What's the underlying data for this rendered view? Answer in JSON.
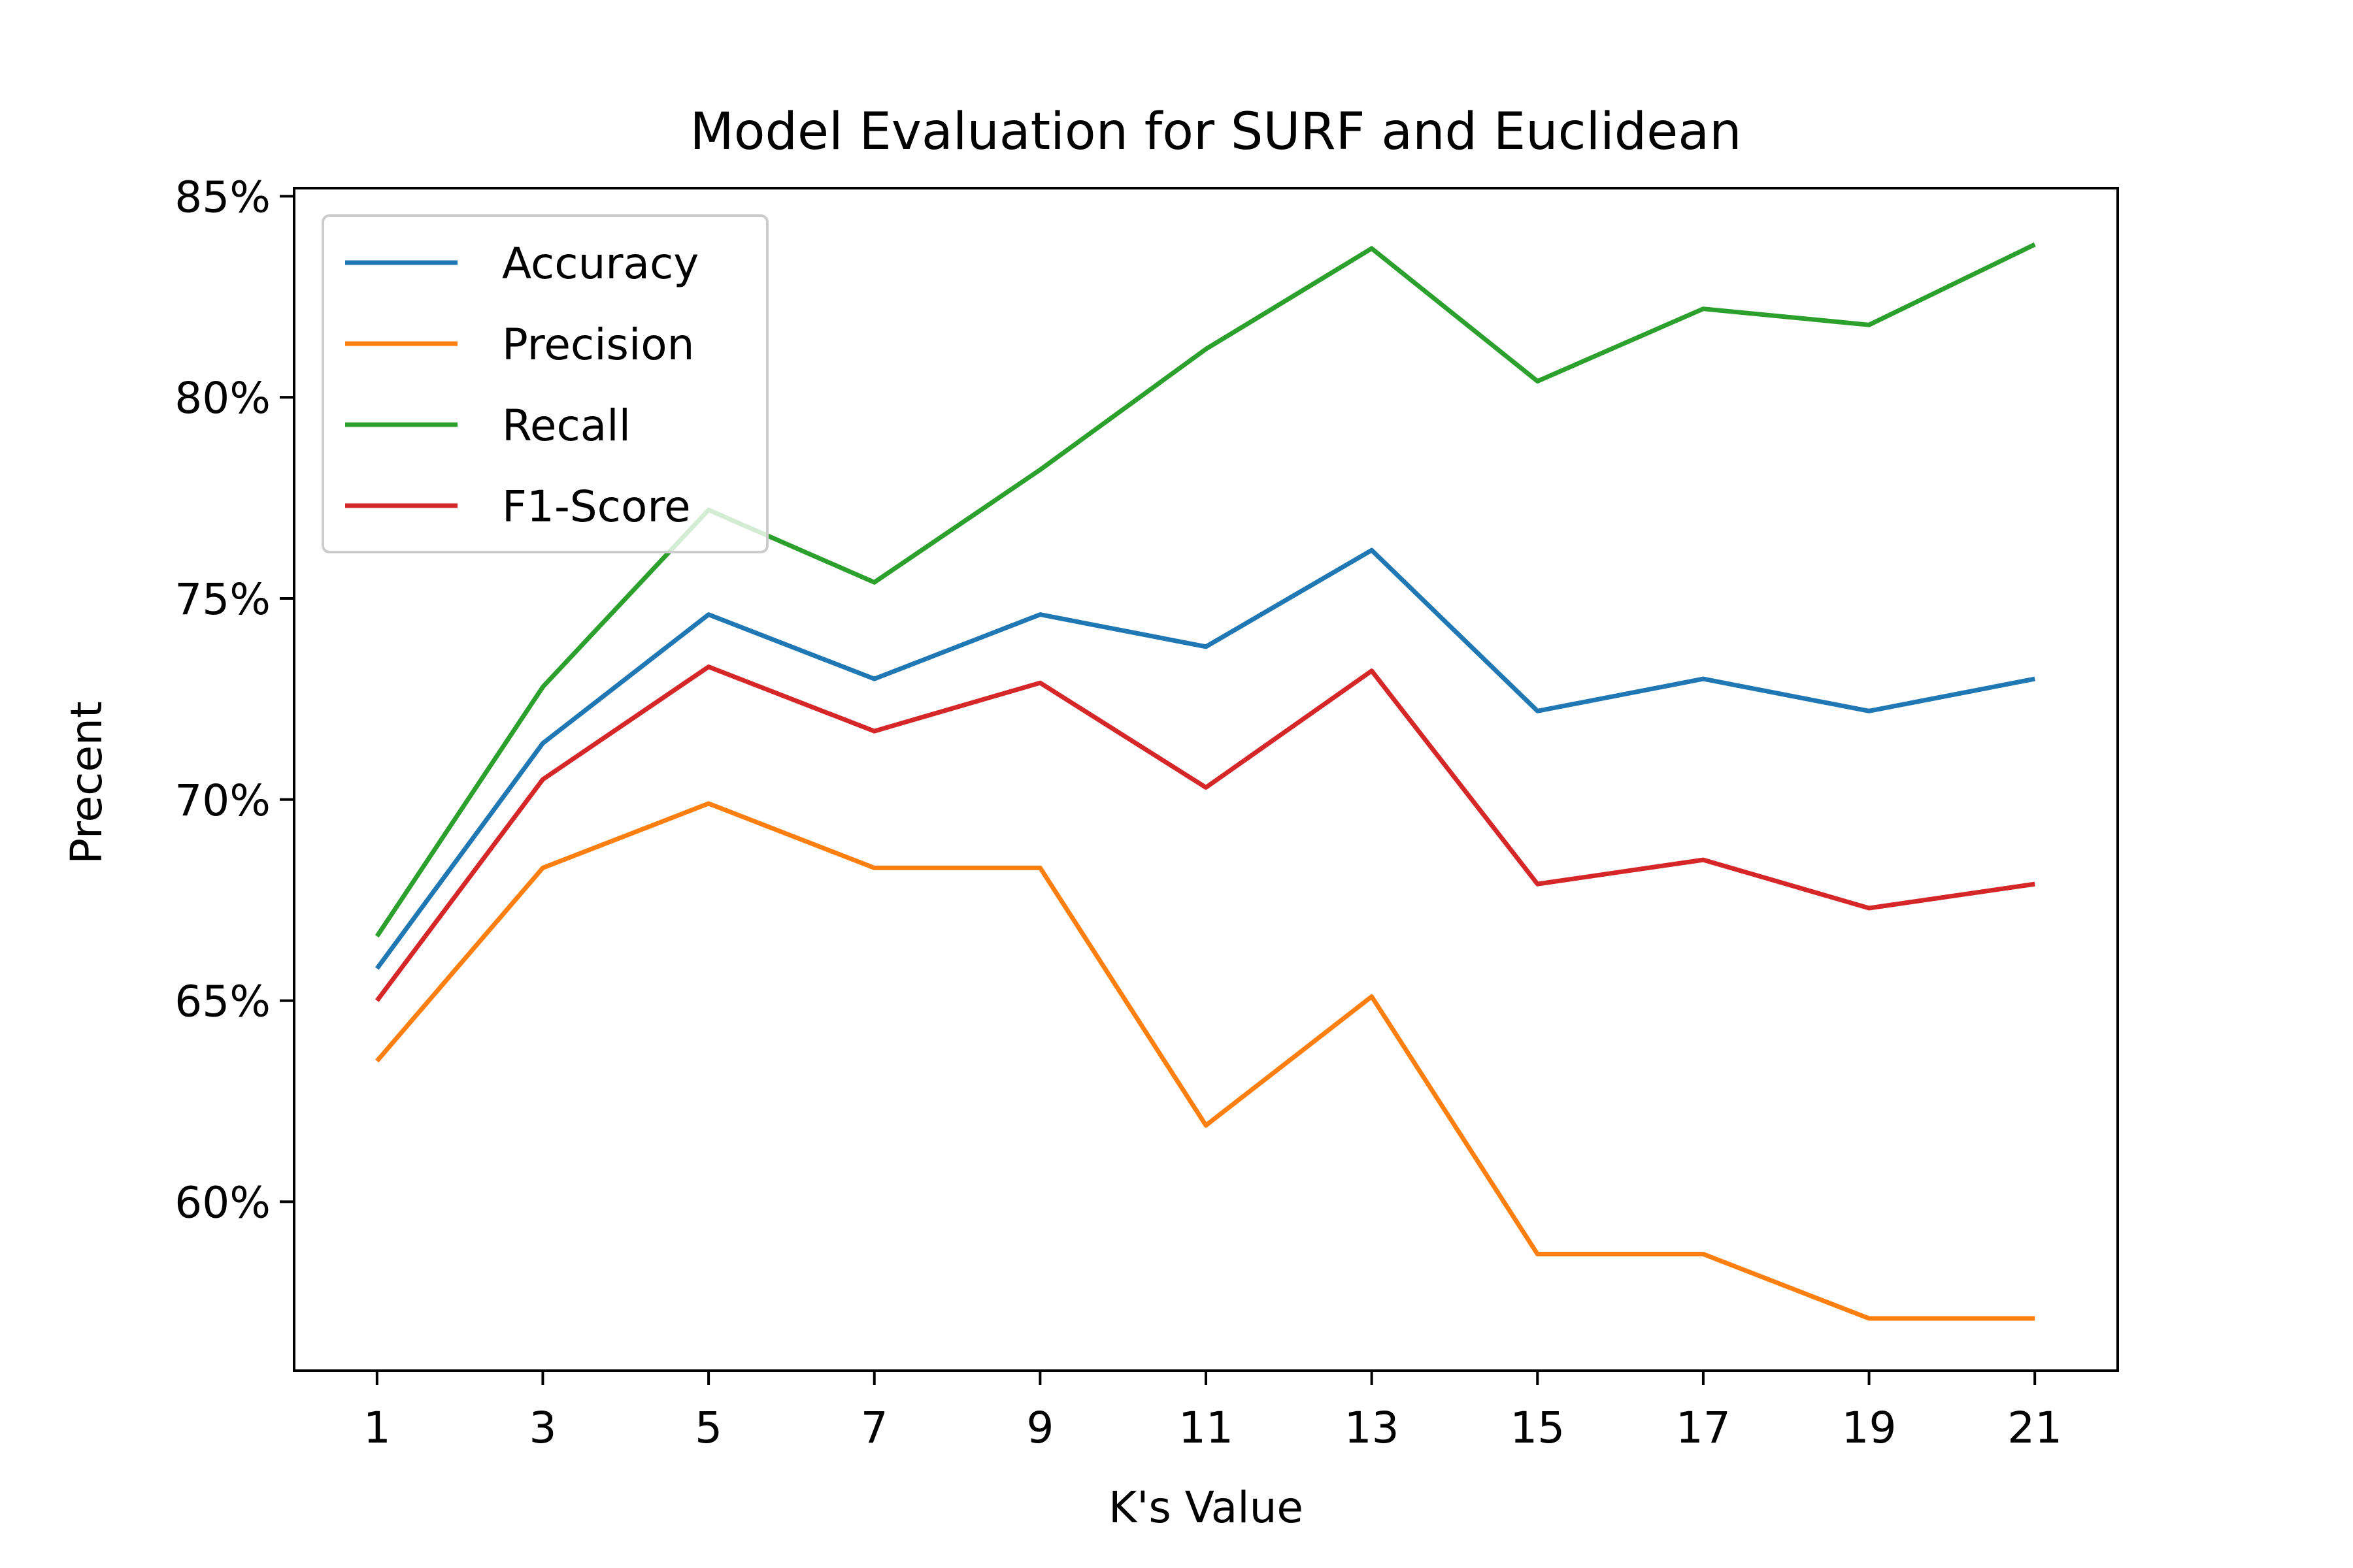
{
  "chart_data": {
    "type": "line",
    "title": "Model Evaluation for SURF and Euclidean",
    "xlabel": "K's Value",
    "ylabel": "Precent",
    "x": [
      1,
      3,
      5,
      7,
      9,
      11,
      13,
      15,
      17,
      19,
      21
    ],
    "x_ticks": [
      "1",
      "3",
      "5",
      "7",
      "9",
      "11",
      "13",
      "15",
      "17",
      "19",
      "21"
    ],
    "xlim": [
      0,
      22
    ],
    "ylim": [
      55.8,
      85.2
    ],
    "y_ticks": [
      60,
      65,
      70,
      75,
      80,
      85
    ],
    "y_tick_labels": [
      "60%",
      "65%",
      "70%",
      "75%",
      "80%",
      "85%"
    ],
    "grid": false,
    "legend_position": "upper-left",
    "series": [
      {
        "name": "Accuracy",
        "color": "#1f77b4",
        "values": [
          65.8,
          71.4,
          74.6,
          73.0,
          74.6,
          73.8,
          76.2,
          72.2,
          73.0,
          72.2,
          73.0
        ]
      },
      {
        "name": "Precision",
        "color": "#ff7f0e",
        "values": [
          63.5,
          68.3,
          69.9,
          68.3,
          68.3,
          61.9,
          65.1,
          58.7,
          58.7,
          57.1,
          57.1
        ]
      },
      {
        "name": "Recall",
        "color": "#2ca02c",
        "values": [
          66.6,
          72.8,
          77.2,
          75.4,
          78.2,
          81.2,
          83.7,
          80.4,
          82.2,
          81.8,
          83.8
        ]
      },
      {
        "name": "F1-Score",
        "color": "#d62728",
        "values": [
          65.0,
          70.5,
          73.3,
          71.7,
          72.9,
          70.3,
          73.2,
          67.9,
          68.5,
          67.3,
          67.9
        ]
      }
    ]
  }
}
